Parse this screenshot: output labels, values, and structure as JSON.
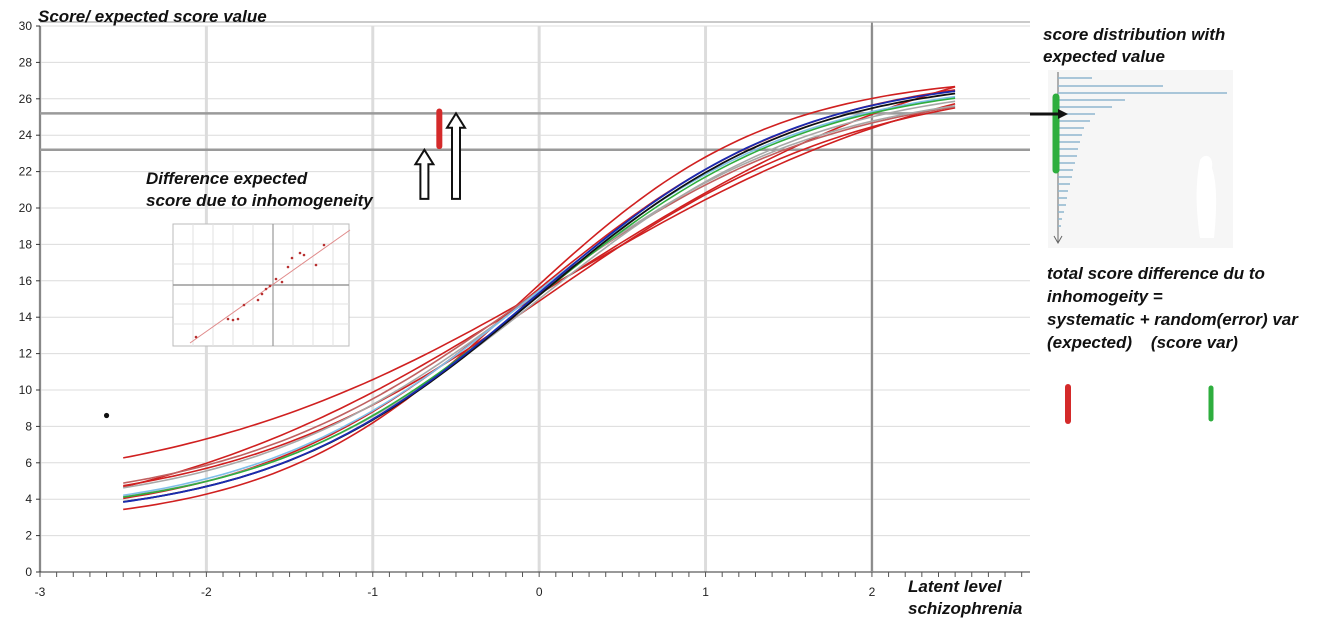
{
  "chart_data": {
    "type": "line",
    "title": "",
    "ylabel": "Score/ expected score value",
    "xlabel_lines": [
      "Latent level",
      "schizophrenia"
    ],
    "xlim": [
      -3,
      2.95
    ],
    "ylim": [
      0,
      30
    ],
    "x_ticks": [
      -3,
      -2,
      -1,
      0,
      1,
      2
    ],
    "y_ticks": [
      0,
      2,
      4,
      6,
      8,
      10,
      12,
      14,
      16,
      18,
      20,
      22,
      24,
      26,
      28,
      30
    ],
    "grid": true,
    "reference_lines": {
      "horizontal_y": [
        25.2,
        23.2
      ],
      "vertical_x": [
        2
      ]
    },
    "curves": {
      "x_range": [
        -2.5,
        2.5
      ],
      "family": "logistic",
      "series": [
        {
          "color": "#d02020",
          "lower": 2.8,
          "upper": 27.6,
          "slope": 1.2,
          "center": -0.05
        },
        {
          "color": "#d02020",
          "lower": 2.5,
          "upper": 27.4,
          "slope": 1.35,
          "center": -0.1
        },
        {
          "color": "#d02020",
          "lower": 3.2,
          "upper": 27.2,
          "slope": 1.05,
          "center": 0.05
        },
        {
          "color": "#d02020",
          "lower": 4.0,
          "upper": 28.8,
          "slope": 0.85,
          "center": 0.2
        },
        {
          "color": "#d02020",
          "lower": 1.5,
          "upper": 30.4,
          "slope": 0.8,
          "center": 0.12
        },
        {
          "color": "#c06060",
          "lower": 3.4,
          "upper": 26.9,
          "slope": 1.1,
          "center": -0.05
        },
        {
          "color": "#a8a8a8",
          "lower": 3.3,
          "upper": 26.8,
          "slope": 1.15,
          "center": -0.05
        },
        {
          "color": "#a8a8a8",
          "lower": 3.0,
          "upper": 27.0,
          "slope": 1.2,
          "center": 0.0
        },
        {
          "color": "#7fbfe8",
          "lower": 3.0,
          "upper": 27.2,
          "slope": 1.2,
          "center": -0.05
        },
        {
          "color": "#2eae3e",
          "lower": 3.0,
          "upper": 27.1,
          "slope": 1.22,
          "center": -0.02
        },
        {
          "color": "#101010",
          "lower": 2.8,
          "upper": 27.3,
          "slope": 1.25,
          "center": -0.02
        },
        {
          "color": "#1a2ab0",
          "lower": 2.8,
          "upper": 27.4,
          "slope": 1.26,
          "center": -0.03
        }
      ]
    },
    "point": {
      "x": -2.6,
      "y": 8.6
    },
    "markers": [
      {
        "type": "red-bar",
        "x": -0.6,
        "y_from": 23.4,
        "y_to": 25.3
      },
      {
        "type": "up-arrow",
        "x": -0.69,
        "y_from": 20.5,
        "y_to": 23.2
      },
      {
        "type": "up-arrow",
        "x": -0.5,
        "y_from": 20.5,
        "y_to": 25.2
      }
    ]
  },
  "annotations": {
    "diff_lines": [
      "Difference expected",
      "score due to inhomogeneity"
    ],
    "dist_lines": [
      "score distribution with",
      "expected value"
    ],
    "total_lines": [
      "total score difference du to",
      "inhomogeity =",
      "systematic + random(error) var",
      "(expected)    (score var)"
    ]
  },
  "colors": {
    "red": "#d42a2a",
    "green": "#2eae3e",
    "grid": "#dcdcdc",
    "ref_line": "#9a9a9a"
  }
}
